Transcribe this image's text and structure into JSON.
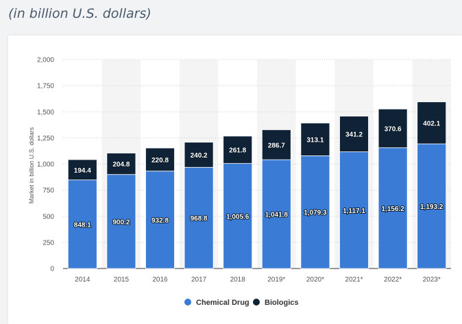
{
  "header": {
    "subtitle": "(in billion U.S. dollars)"
  },
  "colors": {
    "chemical": "#3a7bd5",
    "biologics": "#0f2236",
    "band": "#f4f4f5",
    "grid": "#cfcfcf"
  },
  "chart_data": {
    "type": "bar",
    "stacked": true,
    "categories": [
      "2014",
      "2015",
      "2016",
      "2017",
      "2018",
      "2019*",
      "2020*",
      "2021*",
      "2022*",
      "2023*"
    ],
    "series": [
      {
        "name": "Chemical Drug",
        "values": [
          848.1,
          900.2,
          932.8,
          968.8,
          1005.6,
          1041.8,
          1079.3,
          1117.1,
          1156.2,
          1193.2
        ],
        "labels": [
          "848.1",
          "900.2",
          "932.8",
          "968.8",
          "1,005.6",
          "1,041.8",
          "1,079.3",
          "1,117.1",
          "1,156.2",
          "1,193.2"
        ]
      },
      {
        "name": "Biologics",
        "values": [
          194.4,
          204.8,
          220.8,
          240.2,
          261.8,
          286.7,
          313.1,
          341.2,
          370.6,
          402.1
        ],
        "labels": [
          "194.4",
          "204.8",
          "220.8",
          "240.2",
          "261.8",
          "286.7",
          "313.1",
          "341.2",
          "370.6",
          "402.1"
        ]
      }
    ],
    "ylabel": "Market in billion U.S. dollars",
    "ylim": [
      0,
      2000
    ],
    "yticks": [
      0,
      250,
      500,
      750,
      1000,
      1250,
      1500,
      1750,
      2000
    ],
    "ytick_labels": [
      "0",
      "250",
      "500",
      "750",
      "1,000",
      "1,250",
      "1,500",
      "1,750",
      "2,000"
    ],
    "grid": true,
    "legend": "bottom-center"
  }
}
